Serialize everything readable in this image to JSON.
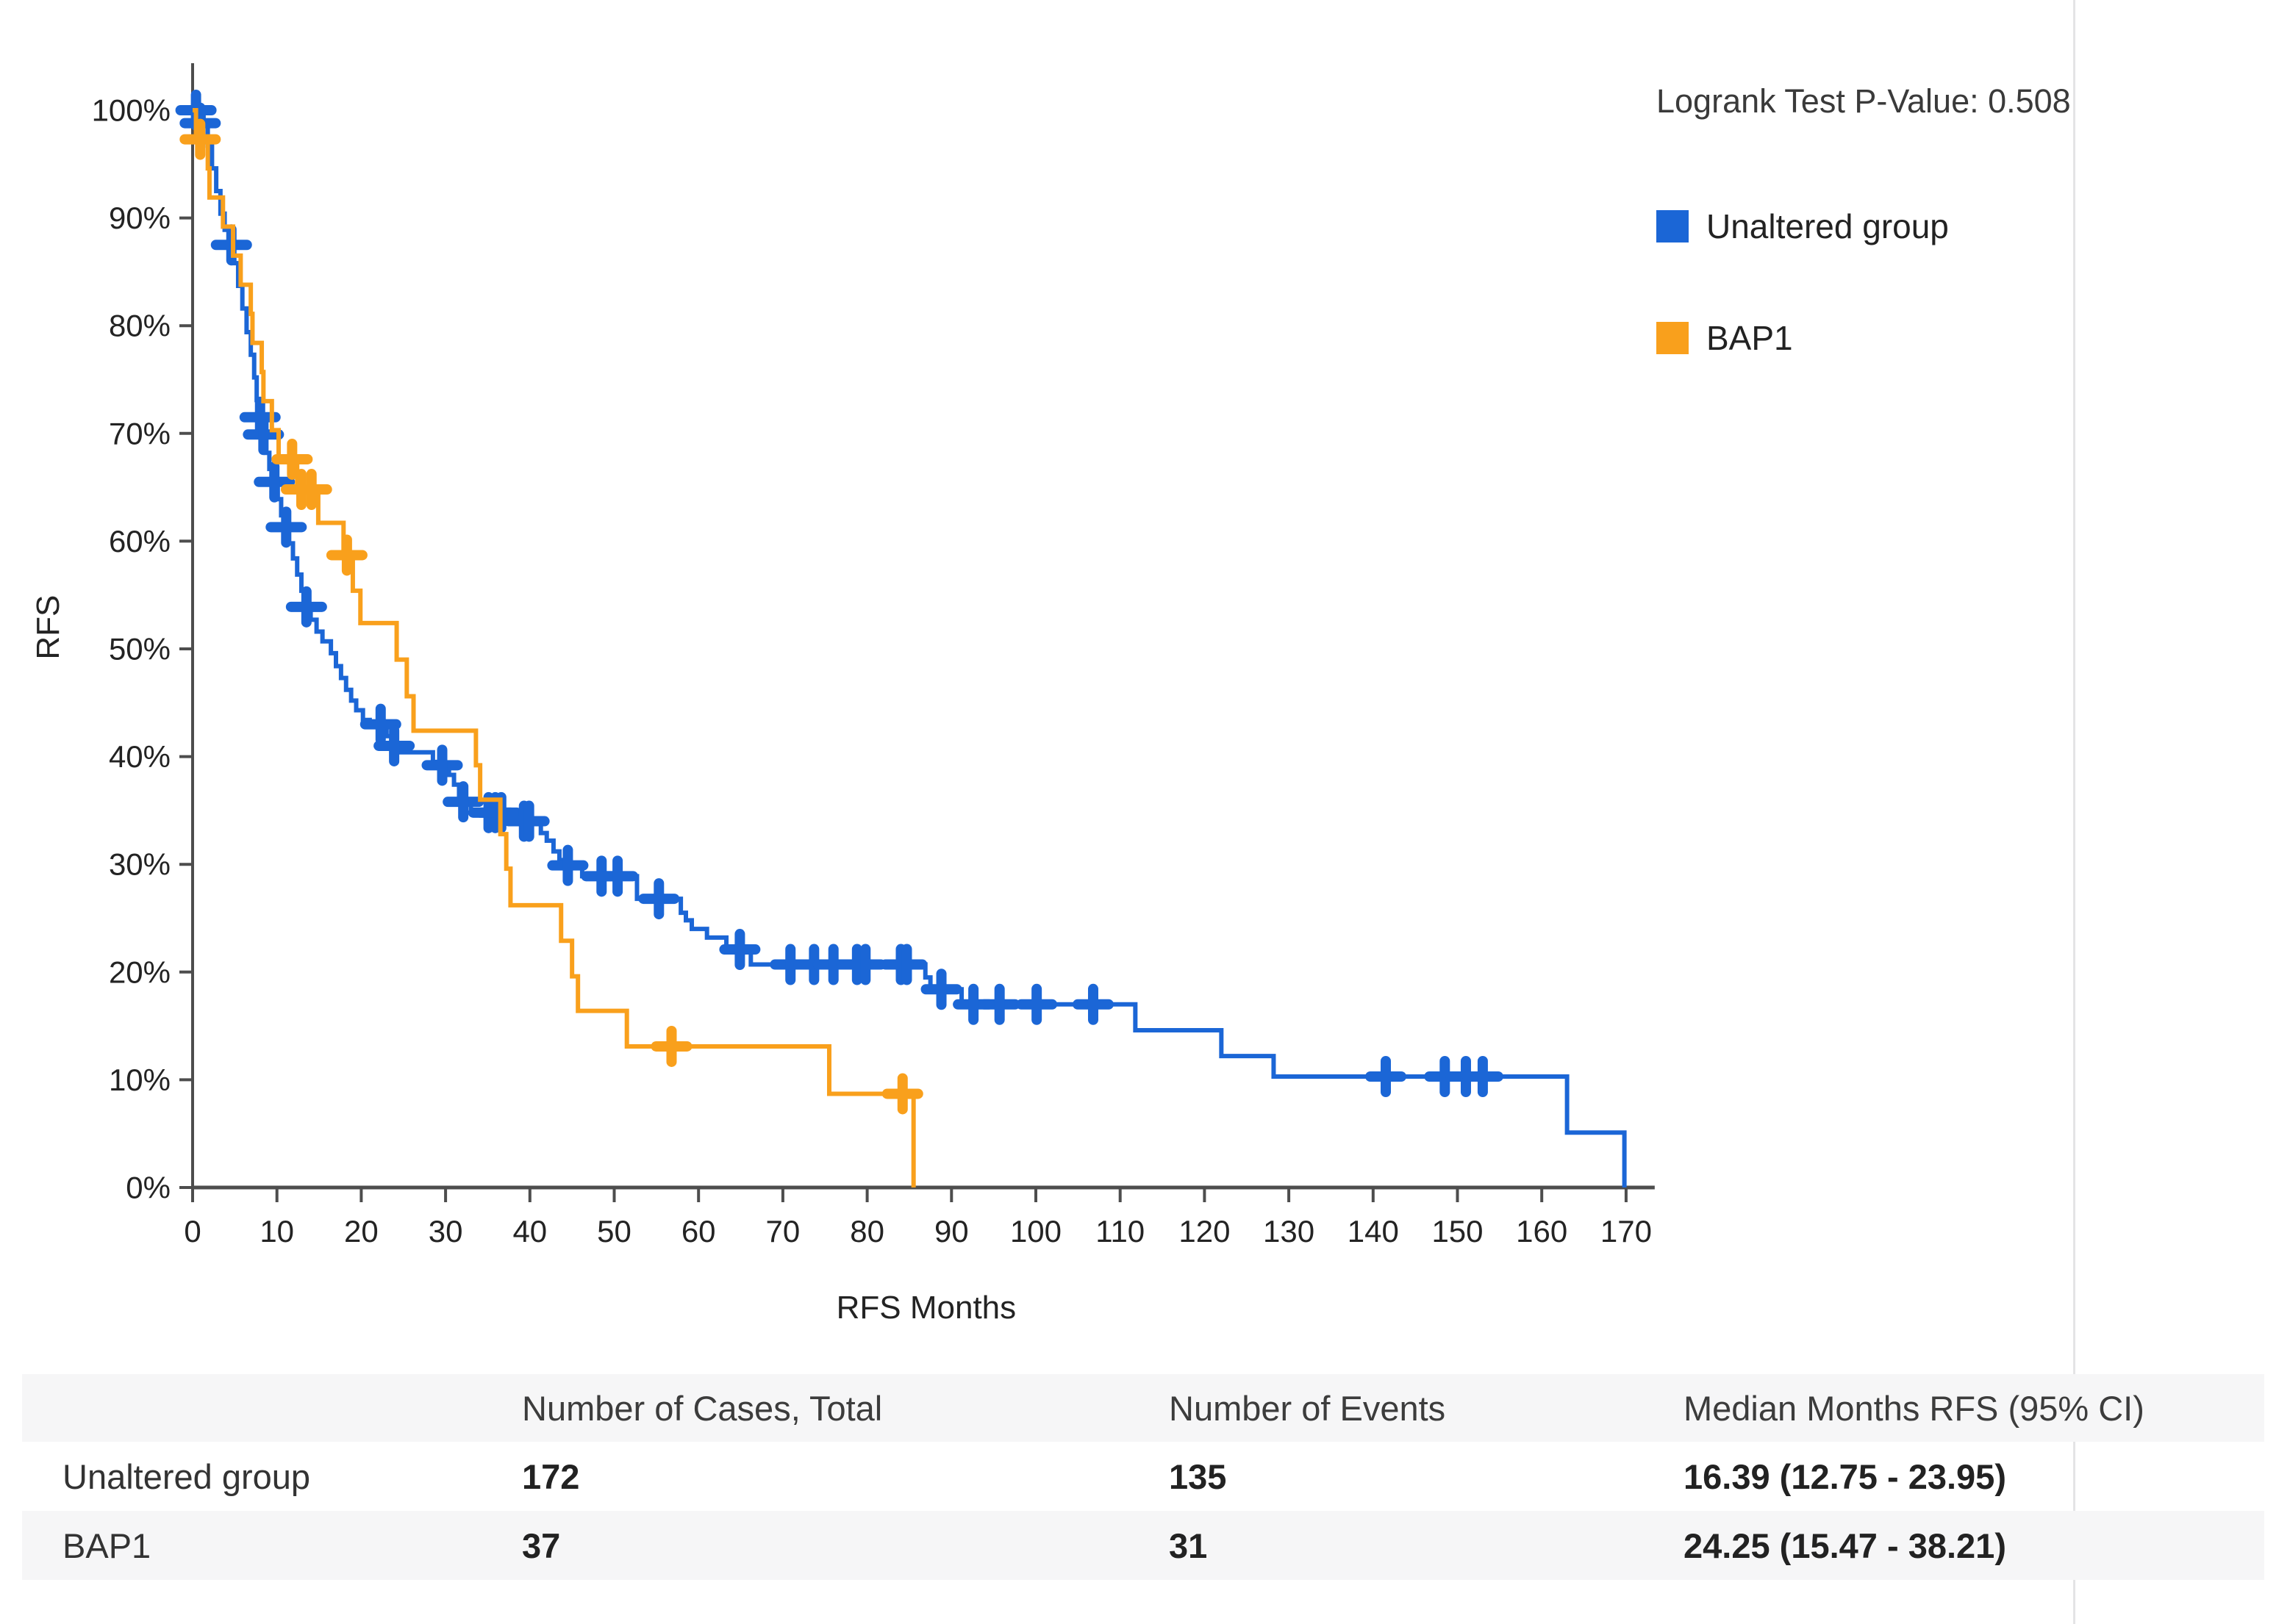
{
  "chart_data": {
    "type": "line",
    "subtype": "kaplan-meier-step",
    "title": "",
    "xlabel": "RFS Months",
    "ylabel": "RFS",
    "xlim": [
      0,
      175
    ],
    "ylim": [
      0,
      100
    ],
    "grid": false,
    "legend_position": "top-right",
    "logrank_label": "Logrank Test P-Value: 0.508",
    "x_ticks": [
      0,
      10,
      20,
      30,
      40,
      50,
      60,
      70,
      80,
      90,
      100,
      110,
      120,
      130,
      140,
      150,
      160,
      170
    ],
    "y_tick_labels": [
      "0%",
      "10%",
      "20%",
      "30%",
      "40%",
      "50%",
      "60%",
      "70%",
      "80%",
      "90%",
      "100%"
    ],
    "axis_color": "#4d4d4d",
    "tick_text_color": "#232323",
    "series": [
      {
        "name": "Unaltered group",
        "color": "#1b66d6",
        "steps": [
          [
            0,
            100
          ],
          [
            1.3,
            98.8
          ],
          [
            1.8,
            96.7
          ],
          [
            2.3,
            94.6
          ],
          [
            2.8,
            92.5
          ],
          [
            3.3,
            90.4
          ],
          [
            3.8,
            88.9
          ],
          [
            4.3,
            87.5
          ],
          [
            4.9,
            85.8
          ],
          [
            5.4,
            83.7
          ],
          [
            5.9,
            81.6
          ],
          [
            6.4,
            79.4
          ],
          [
            6.9,
            77.3
          ],
          [
            7.3,
            75.2
          ],
          [
            7.6,
            73.1
          ],
          [
            7.9,
            71.5
          ],
          [
            8.3,
            69.9
          ],
          [
            8.7,
            68.2
          ],
          [
            9.1,
            66.7
          ],
          [
            9.5,
            65.5
          ],
          [
            10.1,
            63.9
          ],
          [
            10.5,
            62.4
          ],
          [
            10.9,
            61.3
          ],
          [
            11.4,
            59.8
          ],
          [
            11.9,
            58.4
          ],
          [
            12.4,
            56.9
          ],
          [
            12.9,
            55.4
          ],
          [
            13.3,
            53.9
          ],
          [
            14.0,
            52.7
          ],
          [
            14.7,
            51.6
          ],
          [
            15.4,
            50.7
          ],
          [
            16.4,
            49.6
          ],
          [
            17.0,
            48.4
          ],
          [
            17.6,
            47.3
          ],
          [
            18.2,
            46.2
          ],
          [
            18.8,
            45.2
          ],
          [
            19.4,
            44.3
          ],
          [
            20.2,
            43.4
          ],
          [
            21.0,
            43.0
          ],
          [
            23.0,
            41.9
          ],
          [
            23.6,
            41.0
          ],
          [
            24.5,
            40.4
          ],
          [
            28.5,
            39.5
          ],
          [
            29.3,
            39.2
          ],
          [
            30.4,
            38.3
          ],
          [
            31.0,
            37.4
          ],
          [
            31.6,
            36.4
          ],
          [
            32.2,
            35.8
          ],
          [
            33.0,
            34.8
          ],
          [
            38.7,
            34.0
          ],
          [
            41.3,
            32.9
          ],
          [
            42.0,
            32.2
          ],
          [
            42.8,
            31.2
          ],
          [
            43.5,
            30.4
          ],
          [
            44.2,
            29.9
          ],
          [
            46.2,
            28.9
          ],
          [
            52.7,
            26.8
          ],
          [
            57.9,
            25.5
          ],
          [
            58.5,
            24.8
          ],
          [
            59.2,
            24.0
          ],
          [
            61.0,
            23.2
          ],
          [
            63.3,
            22.1
          ],
          [
            66.2,
            20.7
          ],
          [
            86.9,
            19.5
          ],
          [
            87.5,
            18.4
          ],
          [
            91.2,
            17.0
          ],
          [
            111.8,
            14.6
          ],
          [
            122.0,
            12.2
          ],
          [
            128.2,
            10.3
          ],
          [
            163.0,
            5.1
          ],
          [
            169.8,
            0
          ]
        ],
        "censors": [
          [
            0.4,
            100
          ],
          [
            0.9,
            98.8
          ],
          [
            4.6,
            87.5
          ],
          [
            8.0,
            71.5
          ],
          [
            8.4,
            69.9
          ],
          [
            9.7,
            65.5
          ],
          [
            11.1,
            61.3
          ],
          [
            13.5,
            53.9
          ],
          [
            22.3,
            43.0
          ],
          [
            23.9,
            41.0
          ],
          [
            29.6,
            39.2
          ],
          [
            32.1,
            35.8
          ],
          [
            35.1,
            34.8
          ],
          [
            35.9,
            34.8
          ],
          [
            36.6,
            34.8
          ],
          [
            39.3,
            34.0
          ],
          [
            39.9,
            34.0
          ],
          [
            44.5,
            29.9
          ],
          [
            48.5,
            28.9
          ],
          [
            50.4,
            28.9
          ],
          [
            55.3,
            26.8
          ],
          [
            64.9,
            22.1
          ],
          [
            70.9,
            20.7
          ],
          [
            73.7,
            20.7
          ],
          [
            76.0,
            20.7
          ],
          [
            78.8,
            20.7
          ],
          [
            79.8,
            20.7
          ],
          [
            84.0,
            20.7
          ],
          [
            84.7,
            20.7
          ],
          [
            88.8,
            18.4
          ],
          [
            92.6,
            17.0
          ],
          [
            95.7,
            17.0
          ],
          [
            100.1,
            17.0
          ],
          [
            106.8,
            17.0
          ],
          [
            141.5,
            10.3
          ],
          [
            148.5,
            10.3
          ],
          [
            151.0,
            10.3
          ],
          [
            153.0,
            10.3
          ]
        ]
      },
      {
        "name": "BAP1",
        "color": "#f9a01c",
        "steps": [
          [
            0,
            100
          ],
          [
            0.4,
            97.3
          ],
          [
            1.8,
            94.6
          ],
          [
            2.0,
            91.9
          ],
          [
            3.6,
            89.2
          ],
          [
            4.8,
            86.5
          ],
          [
            5.7,
            83.8
          ],
          [
            6.9,
            81.1
          ],
          [
            7.1,
            78.4
          ],
          [
            8.2,
            75.7
          ],
          [
            8.4,
            73.0
          ],
          [
            9.4,
            70.3
          ],
          [
            10.2,
            67.6
          ],
          [
            12.4,
            64.8
          ],
          [
            14.9,
            61.7
          ],
          [
            17.9,
            58.7
          ],
          [
            19.0,
            55.4
          ],
          [
            19.9,
            52.4
          ],
          [
            24.2,
            49.0
          ],
          [
            25.4,
            45.6
          ],
          [
            26.2,
            42.4
          ],
          [
            33.6,
            39.2
          ],
          [
            34.1,
            36.0
          ],
          [
            36.5,
            32.8
          ],
          [
            37.2,
            29.6
          ],
          [
            37.7,
            26.2
          ],
          [
            43.7,
            22.9
          ],
          [
            45.0,
            19.6
          ],
          [
            45.7,
            16.4
          ],
          [
            51.5,
            13.1
          ],
          [
            75.5,
            8.7
          ],
          [
            85.5,
            0
          ]
        ],
        "censors": [
          [
            0.9,
            97.3
          ],
          [
            11.8,
            67.6
          ],
          [
            12.9,
            64.8
          ],
          [
            14.1,
            64.8
          ],
          [
            18.3,
            58.7
          ],
          [
            56.8,
            13.1
          ],
          [
            84.2,
            8.7
          ]
        ]
      }
    ]
  },
  "table": {
    "columns": [
      "",
      "Number of Cases, Total",
      "Number of Events",
      "Median Months RFS (95% CI)"
    ],
    "rows": [
      {
        "label": "Unaltered group",
        "cases": "172",
        "events": "135",
        "median": "16.39 (12.75 - 23.95)"
      },
      {
        "label": "BAP1",
        "cases": "37",
        "events": "31",
        "median": "24.25 (15.47 - 38.21)"
      }
    ]
  }
}
